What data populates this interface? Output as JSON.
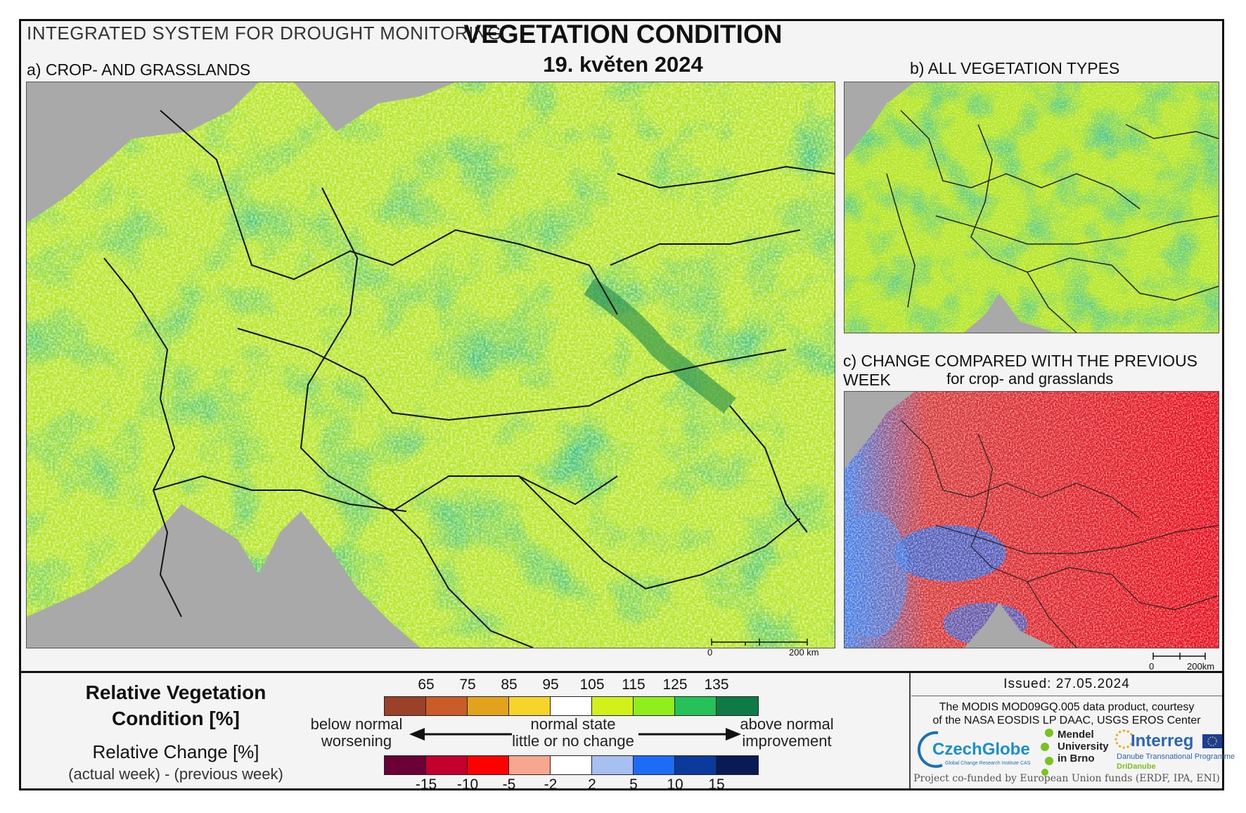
{
  "header": {
    "system_title": "INTEGRATED SYSTEM FOR DROUGHT MONITORING",
    "title": "VEGETATION CONDITION",
    "date": "19. květen 2024"
  },
  "panels": {
    "a": {
      "label": "a) CROP- AND GRASSLANDS"
    },
    "b": {
      "label": "b) ALL VEGETATION TYPES"
    },
    "c": {
      "label": "c) CHANGE COMPARED WITH THE PREVIOUS WEEK",
      "sublabel": "for crop- and grasslands"
    }
  },
  "scalebars": {
    "main": {
      "start": "0",
      "end": "200 km"
    },
    "small": {
      "start": "0",
      "end": "200km"
    }
  },
  "legend": {
    "rvc_title_line1": "Relative Vegetation",
    "rvc_title_line2": "Condition [%]",
    "rc_title": "Relative Change [%]",
    "rc_subtitle": "(actual week) - (previous week)",
    "rvc_ticks": [
      "65",
      "75",
      "85",
      "95",
      "105",
      "115",
      "125",
      "135"
    ],
    "rvc_colors": [
      "#9c4129",
      "#c95c28",
      "#e3a21c",
      "#f5d52a",
      "#ffffff",
      "#d4f01a",
      "#90ee1c",
      "#27c15a",
      "#0e7a45"
    ],
    "rc_ticks": [
      "-15",
      "-10",
      "-5",
      "-2",
      "2",
      "5",
      "10",
      "15"
    ],
    "rc_colors": [
      "#6a0036",
      "#c4002e",
      "#ff0000",
      "#f7a690",
      "#ffffff",
      "#a8bff2",
      "#1c6cf5",
      "#0c3a9c",
      "#0a1a52"
    ],
    "below_line1": "below normal",
    "below_line2": "worsening",
    "normal_line1": "normal state",
    "normal_line2": "little or no change",
    "above_line1": "above normal",
    "above_line2": "improvement"
  },
  "info": {
    "issued": "Issued: 27.05.2024",
    "credit_line1": "The MODIS MOD09GQ.005 data product, courtesy",
    "credit_line2": "of the NASA EOSDIS LP DAAC, USGS EROS Center",
    "cofunded": "Project co-funded by European Union funds (ERDF, IPA, ENI)",
    "logos": {
      "czechglobe": "CzechGlobe",
      "czechglobe_sub": "Global Change Research Institute CAS",
      "mendel_1": "Mendel",
      "mendel_2": "University",
      "mendel_3": "in Brno",
      "interreg": "Interreg",
      "interreg_sub": "Danube Transnational Programme",
      "dridanube": "DriDanube"
    }
  }
}
